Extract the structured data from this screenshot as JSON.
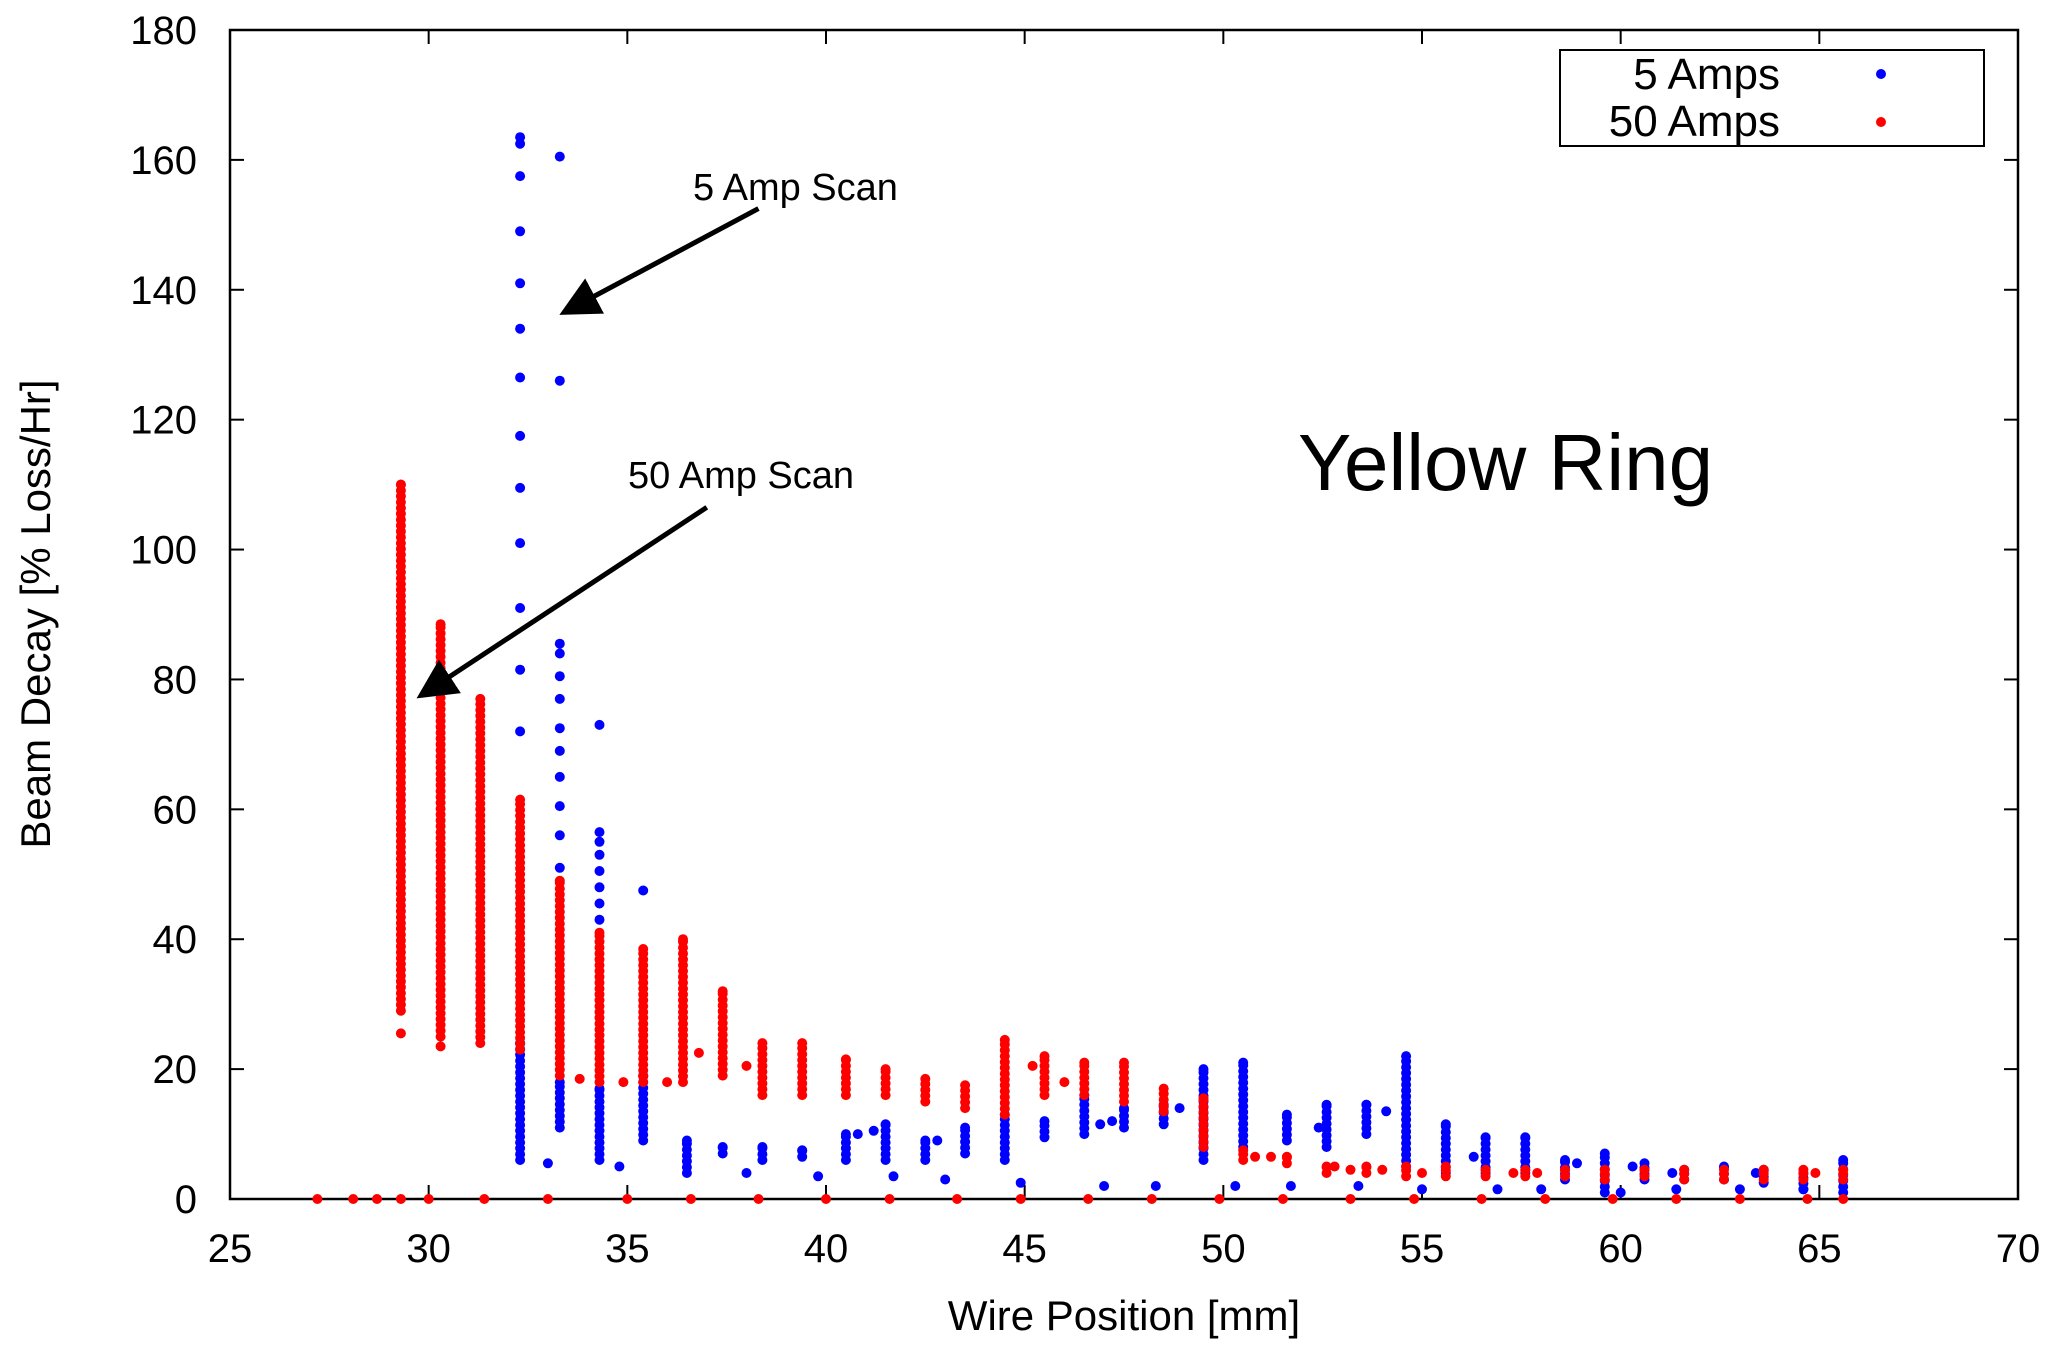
{
  "chart_data": {
    "type": "scatter",
    "title": "",
    "xlabel": "Wire Position [mm]",
    "ylabel": "Beam Decay [%  Loss/Hr]",
    "xlim": [
      25,
      70
    ],
    "ylim": [
      0,
      180
    ],
    "xticks": [
      25,
      30,
      35,
      40,
      45,
      50,
      55,
      60,
      65,
      70
    ],
    "yticks": [
      0,
      20,
      40,
      60,
      80,
      100,
      120,
      140,
      160,
      180
    ],
    "grid": false,
    "legend_position": "top-right",
    "colors": {
      "five_amps": "#0000ff",
      "fifty_amps": "#ff0000"
    },
    "series": [
      {
        "name": "5 Amps",
        "color": "#0000ff",
        "columns": [
          {
            "x": 32.3,
            "min": 6,
            "max": 24,
            "extra": [
              163.5,
              162.5,
              157.5,
              149,
              141,
              134,
              126.5,
              117.5,
              109.5,
              101,
              91,
              81.5,
              72
            ]
          },
          {
            "x": 33.3,
            "min": 11,
            "max": 18,
            "extra": [
              160.5,
              126,
              85.5,
              84,
              80.5,
              77,
              72.5,
              69,
              65,
              60.5,
              56,
              51
            ]
          },
          {
            "x": 34.3,
            "min": 6,
            "max": 17,
            "extra": [
              73,
              56.5,
              55,
              53,
              50.5,
              48,
              45.5,
              43
            ]
          },
          {
            "x": 35.4,
            "min": 9,
            "max": 19,
            "extra": [
              47.5
            ]
          },
          {
            "x": 36.5,
            "min": 4,
            "max": 9,
            "extra": []
          },
          {
            "x": 37.4,
            "min": 7,
            "max": 8,
            "extra": []
          },
          {
            "x": 38.4,
            "min": 6,
            "max": 8,
            "extra": []
          },
          {
            "x": 39.4,
            "min": 6.5,
            "max": 7.5,
            "extra": []
          },
          {
            "x": 40.5,
            "min": 6,
            "max": 10,
            "extra": []
          },
          {
            "x": 41.5,
            "min": 6,
            "max": 11.5,
            "extra": []
          },
          {
            "x": 42.5,
            "min": 6,
            "max": 9,
            "extra": []
          },
          {
            "x": 43.5,
            "min": 7,
            "max": 11,
            "extra": []
          },
          {
            "x": 44.5,
            "min": 6,
            "max": 13,
            "extra": []
          },
          {
            "x": 45.5,
            "min": 9.5,
            "max": 12,
            "extra": []
          },
          {
            "x": 46.5,
            "min": 10,
            "max": 16,
            "extra": []
          },
          {
            "x": 47.5,
            "min": 11,
            "max": 14,
            "extra": []
          },
          {
            "x": 48.5,
            "min": 11.5,
            "max": 14.5,
            "extra": []
          },
          {
            "x": 49.5,
            "min": 6,
            "max": 20,
            "extra": []
          },
          {
            "x": 50.5,
            "min": 8,
            "max": 21,
            "extra": []
          },
          {
            "x": 51.6,
            "min": 9,
            "max": 13,
            "extra": []
          },
          {
            "x": 52.6,
            "min": 8,
            "max": 14.5,
            "extra": []
          },
          {
            "x": 53.6,
            "min": 10,
            "max": 14.5,
            "extra": []
          },
          {
            "x": 54.6,
            "min": 5,
            "max": 22,
            "extra": []
          },
          {
            "x": 55.6,
            "min": 4,
            "max": 11.5,
            "extra": []
          },
          {
            "x": 56.6,
            "min": 4,
            "max": 9.5,
            "extra": []
          },
          {
            "x": 57.6,
            "min": 4,
            "max": 9.5,
            "extra": []
          },
          {
            "x": 58.6,
            "min": 3,
            "max": 6,
            "extra": []
          },
          {
            "x": 59.6,
            "min": 1,
            "max": 7,
            "extra": []
          },
          {
            "x": 60.6,
            "min": 3,
            "max": 5.5,
            "extra": []
          },
          {
            "x": 61.6,
            "min": 3,
            "max": 4.5,
            "extra": []
          },
          {
            "x": 62.6,
            "min": 3,
            "max": 5,
            "extra": []
          },
          {
            "x": 63.6,
            "min": 2.5,
            "max": 4.5,
            "extra": []
          },
          {
            "x": 64.6,
            "min": 1.5,
            "max": 4,
            "extra": []
          },
          {
            "x": 65.6,
            "min": 1,
            "max": 6,
            "extra": []
          }
        ],
        "points": [
          [
            33.0,
            5.5
          ],
          [
            34.8,
            5
          ],
          [
            38.0,
            4
          ],
          [
            39.8,
            3.5
          ],
          [
            41.7,
            3.5
          ],
          [
            43.0,
            3
          ],
          [
            44.9,
            2.5
          ],
          [
            47.0,
            2
          ],
          [
            48.3,
            2
          ],
          [
            50.3,
            2
          ],
          [
            51.7,
            2
          ],
          [
            53.4,
            2
          ],
          [
            55.0,
            1.5
          ],
          [
            56.9,
            1.5
          ],
          [
            58.0,
            1.5
          ],
          [
            60.0,
            1
          ],
          [
            61.4,
            1.5
          ],
          [
            63.0,
            1.5
          ],
          [
            64.6,
            1.5
          ],
          [
            40.8,
            10
          ],
          [
            41.2,
            10.5
          ],
          [
            42.8,
            9
          ],
          [
            46.9,
            11.5
          ],
          [
            47.2,
            12
          ],
          [
            48.9,
            14
          ],
          [
            52.4,
            11
          ],
          [
            54.1,
            13.5
          ],
          [
            56.3,
            6.5
          ],
          [
            58.9,
            5.5
          ],
          [
            60.3,
            5
          ],
          [
            61.3,
            4
          ],
          [
            63.4,
            4
          ]
        ]
      },
      {
        "name": "50 Amps",
        "color": "#ff0000",
        "columns": [
          {
            "x": 29.3,
            "min": 29,
            "max": 110,
            "extra": [
              25.5
            ]
          },
          {
            "x": 30.3,
            "min": 25,
            "max": 88.5,
            "extra": [
              23.5
            ]
          },
          {
            "x": 31.3,
            "min": 24,
            "max": 77,
            "extra": []
          },
          {
            "x": 32.3,
            "min": 23,
            "max": 61.5,
            "extra": []
          },
          {
            "x": 33.3,
            "min": 19,
            "max": 49,
            "extra": []
          },
          {
            "x": 34.3,
            "min": 18,
            "max": 41,
            "extra": []
          },
          {
            "x": 35.4,
            "min": 18,
            "max": 38.5,
            "extra": []
          },
          {
            "x": 36.4,
            "min": 18,
            "max": 40,
            "extra": []
          },
          {
            "x": 37.4,
            "min": 19,
            "max": 32,
            "extra": []
          },
          {
            "x": 38.4,
            "min": 16,
            "max": 24,
            "extra": []
          },
          {
            "x": 39.4,
            "min": 16,
            "max": 24,
            "extra": []
          },
          {
            "x": 40.5,
            "min": 16,
            "max": 21.5,
            "extra": []
          },
          {
            "x": 41.5,
            "min": 16,
            "max": 20,
            "extra": []
          },
          {
            "x": 42.5,
            "min": 15,
            "max": 18.5,
            "extra": []
          },
          {
            "x": 43.5,
            "min": 14,
            "max": 17.5,
            "extra": []
          },
          {
            "x": 44.5,
            "min": 13,
            "max": 24.5,
            "extra": []
          },
          {
            "x": 45.5,
            "min": 16,
            "max": 22,
            "extra": []
          },
          {
            "x": 46.5,
            "min": 16,
            "max": 21,
            "extra": []
          },
          {
            "x": 47.5,
            "min": 15,
            "max": 21,
            "extra": []
          },
          {
            "x": 48.5,
            "min": 13.5,
            "max": 17,
            "extra": []
          },
          {
            "x": 49.5,
            "min": 8,
            "max": 15.5,
            "extra": []
          },
          {
            "x": 50.5,
            "min": 6,
            "max": 7.5,
            "extra": []
          },
          {
            "x": 51.6,
            "min": 5.5,
            "max": 6.5,
            "extra": []
          },
          {
            "x": 52.6,
            "min": 4,
            "max": 5,
            "extra": []
          },
          {
            "x": 53.6,
            "min": 4,
            "max": 5,
            "extra": []
          },
          {
            "x": 54.6,
            "min": 3.5,
            "max": 5,
            "extra": []
          },
          {
            "x": 55.6,
            "min": 3.5,
            "max": 5,
            "extra": []
          },
          {
            "x": 56.6,
            "min": 3.5,
            "max": 4.5,
            "extra": []
          },
          {
            "x": 57.6,
            "min": 3.5,
            "max": 4.5,
            "extra": []
          },
          {
            "x": 58.6,
            "min": 3.5,
            "max": 4.5,
            "extra": []
          },
          {
            "x": 59.6,
            "min": 3,
            "max": 4.5,
            "extra": []
          },
          {
            "x": 60.6,
            "min": 3.5,
            "max": 4.5,
            "extra": []
          },
          {
            "x": 61.6,
            "min": 3,
            "max": 4.5,
            "extra": []
          },
          {
            "x": 62.6,
            "min": 3,
            "max": 4.5,
            "extra": []
          },
          {
            "x": 63.6,
            "min": 3,
            "max": 4.5,
            "extra": []
          },
          {
            "x": 64.6,
            "min": 3,
            "max": 4.5,
            "extra": []
          },
          {
            "x": 65.6,
            "min": 3,
            "max": 4.5,
            "extra": []
          }
        ],
        "points": [
          [
            27.2,
            0
          ],
          [
            28.1,
            0
          ],
          [
            28.7,
            0
          ],
          [
            29.3,
            0
          ],
          [
            30.0,
            0
          ],
          [
            31.4,
            0
          ],
          [
            33.0,
            0
          ],
          [
            35.0,
            0
          ],
          [
            36.6,
            0
          ],
          [
            38.3,
            0
          ],
          [
            40.0,
            0
          ],
          [
            41.6,
            0
          ],
          [
            43.3,
            0
          ],
          [
            44.9,
            0
          ],
          [
            46.6,
            0
          ],
          [
            48.2,
            0
          ],
          [
            49.9,
            0
          ],
          [
            51.5,
            0
          ],
          [
            53.2,
            0
          ],
          [
            54.8,
            0
          ],
          [
            56.5,
            0
          ],
          [
            58.1,
            0
          ],
          [
            59.8,
            0
          ],
          [
            61.4,
            0
          ],
          [
            63.0,
            0
          ],
          [
            64.7,
            0
          ],
          [
            65.6,
            0
          ],
          [
            33.8,
            18.5
          ],
          [
            34.9,
            18
          ],
          [
            36.0,
            18
          ],
          [
            36.8,
            22.5
          ],
          [
            38.0,
            20.5
          ],
          [
            45.2,
            20.5
          ],
          [
            46.0,
            18
          ],
          [
            50.8,
            6.5
          ],
          [
            51.2,
            6.5
          ],
          [
            52.8,
            5
          ],
          [
            53.2,
            4.5
          ],
          [
            54.0,
            4.5
          ],
          [
            55.0,
            4
          ],
          [
            57.3,
            4
          ],
          [
            57.9,
            4
          ],
          [
            64.9,
            4
          ]
        ]
      }
    ],
    "annotations": [
      {
        "text": "5 Amp Scan",
        "tail": [
          38.3,
          152.5
        ],
        "head": [
          33.4,
          136.5
        ]
      },
      {
        "text": "50 Amp Scan",
        "tail": [
          37.0,
          106.5
        ],
        "head": [
          29.8,
          77.5
        ]
      },
      {
        "text": "Yellow Ring"
      }
    ]
  }
}
